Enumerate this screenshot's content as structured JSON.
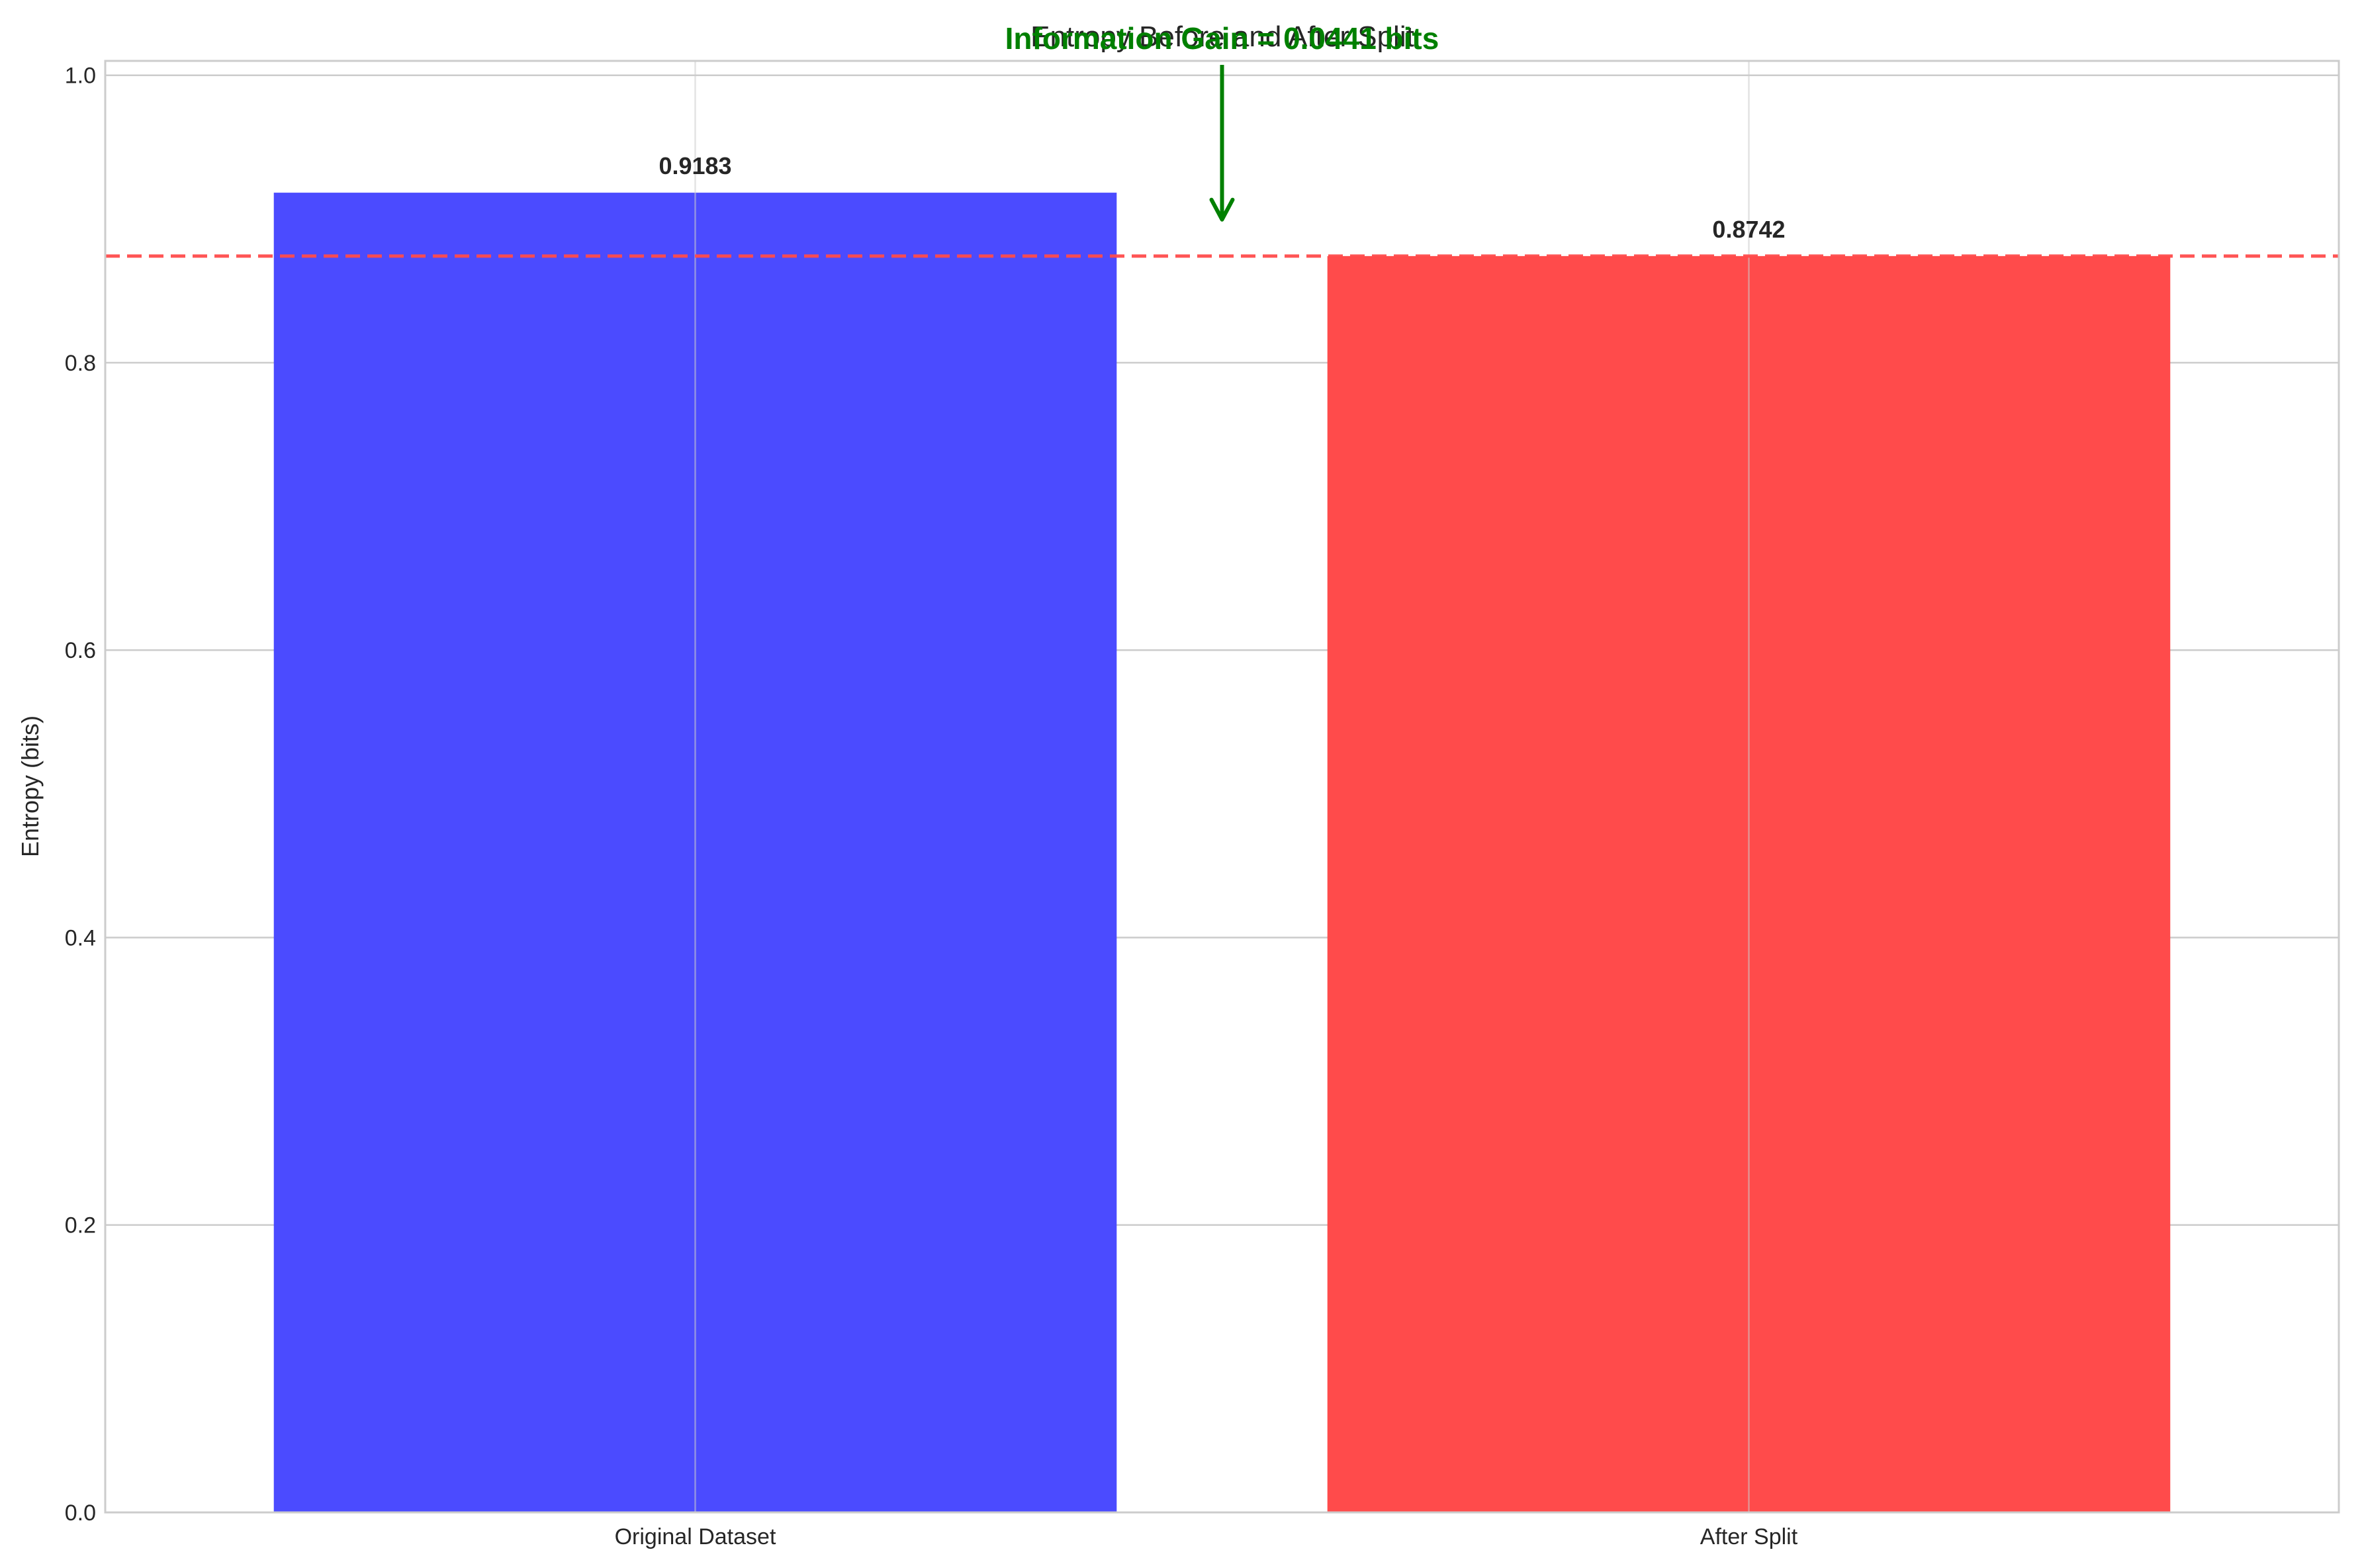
{
  "chart_data": {
    "type": "bar",
    "title": "Entropy Before and After Split",
    "xlabel": "",
    "ylabel": "Entropy (bits)",
    "categories": [
      "Original Dataset",
      "After Split"
    ],
    "values": [
      0.9183,
      0.8742
    ],
    "value_labels": [
      "0.9183",
      "0.8742"
    ],
    "bar_colors": [
      "#4b4bff",
      "#ff4b4b"
    ],
    "ylim": [
      0,
      1.01
    ],
    "yticks": [
      "0.0",
      "0.2",
      "0.4",
      "0.6",
      "0.8",
      "1.0"
    ],
    "grid": true,
    "reference_line": {
      "value": 0.8742,
      "color": "#ff4b4b",
      "style": "dashed"
    },
    "annotation": {
      "text": "Information Gain = 0.0441 bits",
      "color": "#008000",
      "arrow_points_to": 0.8996
    }
  }
}
